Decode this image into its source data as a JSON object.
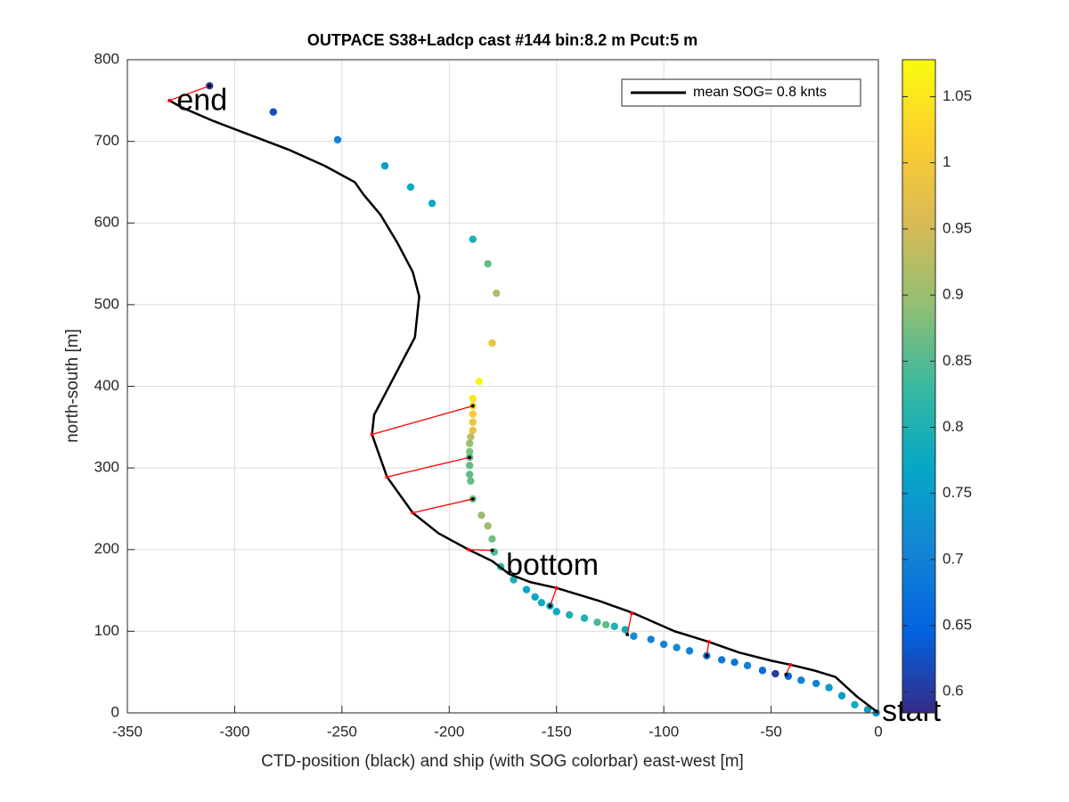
{
  "chart_data": {
    "type": "scatter",
    "title": "OUTPACE S38+Ladcp cast #144 bin:8.2 m  Pcut:5 m",
    "x_label": "CTD-position (black) and ship (with SOG colorbar) east-west [m]",
    "y_label": "north-south [m]",
    "xlim": [
      -350,
      0
    ],
    "ylim": [
      0,
      800
    ],
    "xticks": [
      -350,
      -300,
      -250,
      -200,
      -150,
      -100,
      -50,
      0
    ],
    "yticks": [
      0,
      100,
      200,
      300,
      400,
      500,
      600,
      700,
      800
    ],
    "grid": true,
    "legend": "northeast",
    "series": [
      {
        "name": "mean SOG=  0.8 knts",
        "color": "#000000",
        "x": [
          0,
          -10,
          -20,
          -30,
          -41,
          -50,
          -65,
          -79,
          -95,
          -114,
          -130,
          -150,
          -162,
          -172,
          -180,
          -191,
          -205,
          -217,
          -229,
          -236,
          -235,
          -230,
          -222,
          -216,
          -214,
          -217,
          -224,
          -232,
          -240,
          -244,
          -258,
          -275,
          -290,
          -310,
          -325,
          -330.4
        ],
        "y": [
          0,
          20,
          44,
          52,
          59,
          64,
          74,
          87,
          100,
          122,
          137,
          153,
          160,
          170,
          186,
          200,
          220,
          245,
          289,
          341,
          365,
          390,
          430,
          460,
          510,
          540,
          575,
          610,
          635,
          650,
          670,
          690,
          705,
          725,
          742,
          750
        ]
      }
    ],
    "ship": {
      "x": [
        -311.7,
        -282,
        -252,
        -230,
        -218,
        -208,
        -189,
        -182,
        -178,
        -180,
        -186,
        -189,
        -189,
        -189,
        -189,
        -189,
        -190,
        -190.5,
        -190.5,
        -190.5,
        -190.5,
        -190.5,
        -190,
        -189,
        -185,
        -182,
        -180,
        -179,
        -176,
        -170,
        -164,
        -160,
        -157,
        -153,
        -150,
        -144,
        -137,
        -131,
        -127,
        -123,
        -118,
        -114,
        -106,
        -100,
        -94,
        -88,
        -80,
        -73,
        -67,
        -61,
        -54,
        -48,
        -42,
        -36,
        -29,
        -23,
        -17,
        -11,
        -5,
        -1
      ],
      "y": [
        768,
        736,
        702,
        670,
        644,
        624,
        580,
        550,
        514,
        453,
        406,
        385,
        376,
        366,
        356,
        346,
        338,
        330,
        320,
        313,
        303,
        292,
        284,
        262,
        242,
        229,
        213,
        197,
        179,
        163,
        151,
        142,
        135,
        131,
        124,
        120,
        116,
        111,
        108,
        106,
        102,
        94,
        90,
        84,
        80,
        76,
        70,
        65,
        62,
        58,
        52,
        48,
        45,
        40,
        36,
        31,
        21,
        10,
        4,
        0
      ],
      "values": [
        0.6,
        0.62,
        0.7,
        0.76,
        0.78,
        0.78,
        0.8,
        0.86,
        0.92,
        0.99,
        1.07,
        1.05,
        1.03,
        1.01,
        0.99,
        0.98,
        0.93,
        0.9,
        0.88,
        0.86,
        0.86,
        0.86,
        0.86,
        0.88,
        0.9,
        0.9,
        0.87,
        0.85,
        0.82,
        0.8,
        0.77,
        0.77,
        0.78,
        0.78,
        0.78,
        0.8,
        0.8,
        0.84,
        0.86,
        0.8,
        0.78,
        0.72,
        0.7,
        0.7,
        0.72,
        0.7,
        0.68,
        0.68,
        0.68,
        0.7,
        0.66,
        0.6,
        0.65,
        0.7,
        0.7,
        0.75,
        0.75,
        0.78,
        0.75,
        0.72
      ]
    },
    "connectors": {
      "x1": [
        -311.7,
        -189,
        -190.5,
        -189,
        -180,
        -153,
        -117,
        -80,
        -43
      ],
      "y1": [
        768,
        376,
        313,
        262,
        199,
        131,
        96,
        70,
        47
      ],
      "x2": [
        -330.4,
        -236,
        -229,
        -217,
        -191,
        -150,
        -115,
        -79,
        -41
      ],
      "y2": [
        750,
        341,
        289,
        245,
        200,
        153,
        122,
        87,
        59
      ],
      "color": "#ff0000"
    },
    "annotations": [
      {
        "text": "end",
        "x": -327,
        "y": 748
      },
      {
        "text": "bottom",
        "x": -173.5,
        "y": 179
      },
      {
        "text": "start",
        "x": 1.7,
        "y": 0
      }
    ],
    "colorbar": {
      "clim": [
        0.584,
        1.078
      ],
      "ticks": [
        0.6,
        0.65,
        0.7,
        0.75,
        0.8,
        0.85,
        0.9,
        0.95,
        1,
        1.05
      ],
      "colormap": [
        "#352a87",
        "#0363e1",
        "#1485d4",
        "#06a7c6",
        "#38b99e",
        "#92bf73",
        "#d9ba56",
        "#fcce2e",
        "#f9fb0e"
      ]
    }
  }
}
